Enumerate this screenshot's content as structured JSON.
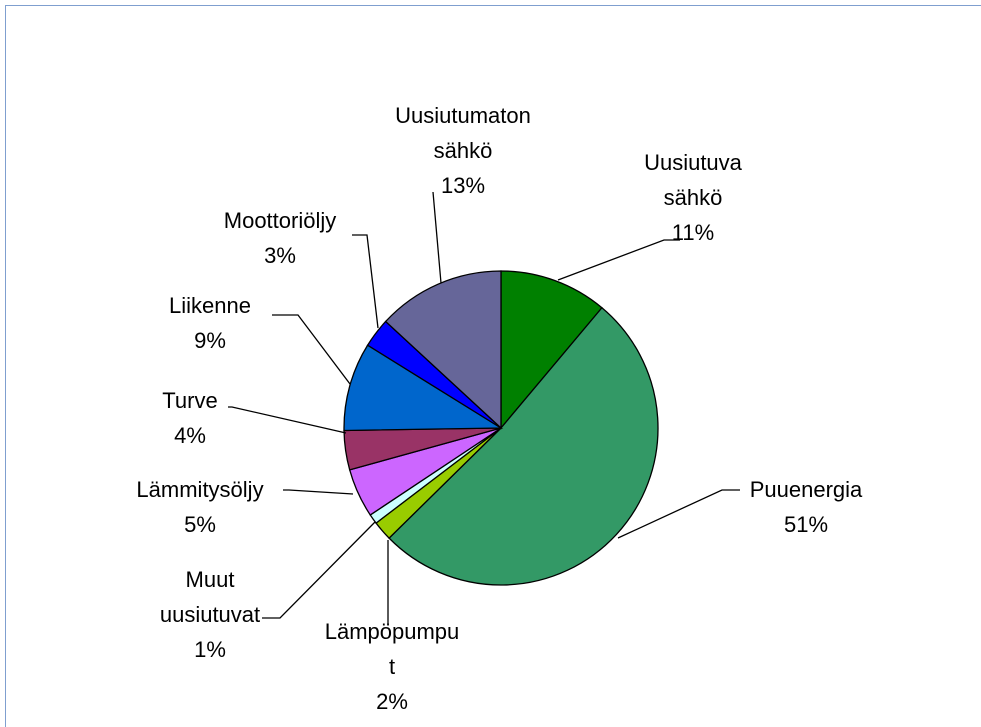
{
  "chart_data": {
    "type": "pie",
    "categories": [
      "Uusiutuva sähkö",
      "Puuenergia",
      "Lämpöpumput",
      "Muut uusiutuvat",
      "Lämmitysöljy",
      "Turve",
      "Liikenne",
      "Moottoriöljy",
      "Uusiutumaton sähkö"
    ],
    "values": [
      11,
      51,
      2,
      1,
      5,
      4,
      9,
      3,
      13
    ],
    "value_labels": [
      "11%",
      "51%",
      "2%",
      "1%",
      "5%",
      "4%",
      "9%",
      "3%",
      "13%"
    ],
    "colors": [
      "#008000",
      "#339966",
      "#99cc00",
      "#ccffff",
      "#cc66ff",
      "#993366",
      "#0066cc",
      "#0000ff",
      "#666699"
    ]
  }
}
